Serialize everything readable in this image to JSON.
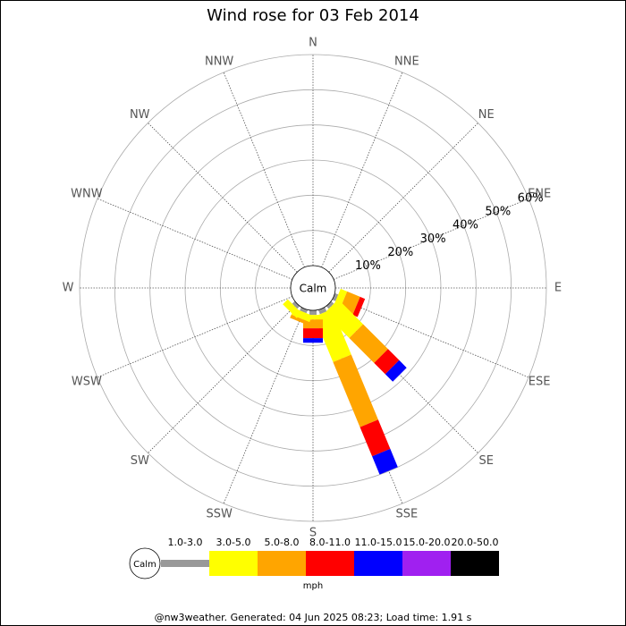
{
  "chart_data": {
    "type": "windrose",
    "title": "Wind rose for 03 Feb 2014",
    "categories": [
      "N",
      "NNE",
      "NE",
      "ENE",
      "E",
      "ESE",
      "SE",
      "SSE",
      "S",
      "SSW",
      "SW",
      "WSW",
      "W",
      "WNW",
      "NW",
      "NNW"
    ],
    "calm_label": "Calm",
    "unit": "mph",
    "rlim": [
      0,
      60
    ],
    "rticks": [
      {
        "value": 10,
        "label": "10%"
      },
      {
        "value": 20,
        "label": "20%"
      },
      {
        "value": 30,
        "label": "30%"
      },
      {
        "value": 40,
        "label": "40%"
      },
      {
        "value": 50,
        "label": "50%"
      },
      {
        "value": 60,
        "label": "60%"
      }
    ],
    "series": [
      {
        "name": "1.0-3.0",
        "color": "#999999",
        "values": [
          0,
          0,
          0,
          0,
          0,
          1,
          1,
          1.3,
          1.3,
          1,
          1,
          0,
          0,
          0,
          0,
          0
        ]
      },
      {
        "name": "3.0-5.0",
        "color": "#ffff00",
        "values": [
          0,
          0,
          0,
          0,
          0,
          2,
          10,
          14,
          1.3,
          2,
          2,
          0,
          0,
          0,
          0,
          0
        ]
      },
      {
        "name": "5.0-8.0",
        "color": "#ffa500",
        "values": [
          0,
          0,
          0,
          0,
          0,
          4,
          10,
          20,
          2.5,
          1,
          0,
          0,
          0,
          0,
          0,
          0
        ]
      },
      {
        "name": "8.0-11.0",
        "color": "#ff0000",
        "values": [
          0,
          0,
          0,
          0,
          0,
          1.5,
          4.5,
          9,
          2.8,
          0,
          0,
          0,
          0,
          0,
          0,
          0
        ]
      },
      {
        "name": "11.0-15.0",
        "color": "#0000ff",
        "values": [
          0,
          0,
          0,
          0,
          0,
          0,
          3,
          5.6,
          1.3,
          0,
          0,
          0,
          0,
          0,
          0,
          0
        ]
      },
      {
        "name": "15.0-20.0",
        "color": "#a020f0",
        "values": [
          0,
          0,
          0,
          0,
          0,
          0,
          0,
          0,
          0,
          0,
          0,
          0,
          0,
          0,
          0,
          0
        ]
      },
      {
        "name": "20.0-50.0",
        "color": "#000000",
        "values": [
          0,
          0,
          0,
          0,
          0,
          0,
          0,
          0,
          0,
          0,
          0,
          0,
          0,
          0,
          0,
          0
        ]
      }
    ],
    "footer": "@nw3weather. Generated: 04 Jun 2025 08:23; Load time: 1.91 s"
  }
}
